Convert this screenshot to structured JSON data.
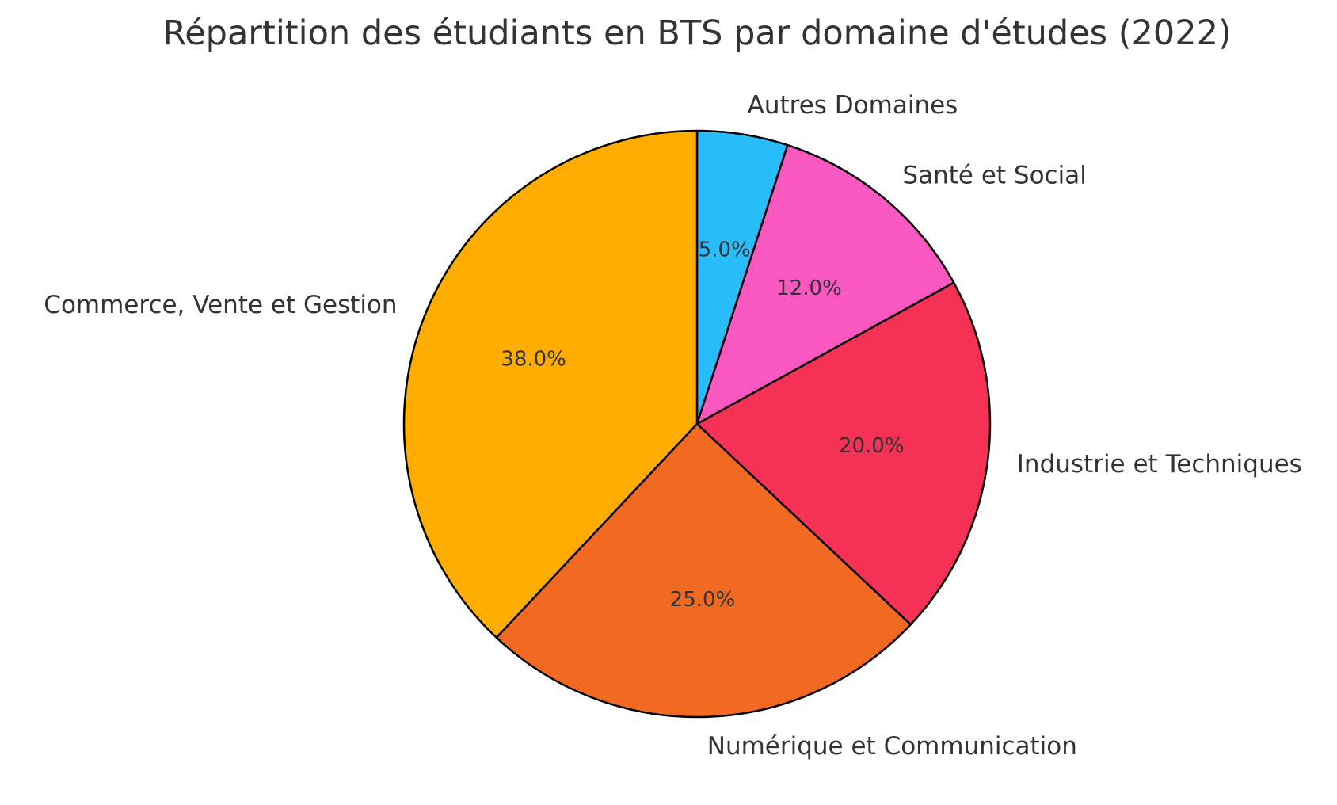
{
  "chart_data": {
    "type": "pie",
    "title": "Répartition des étudiants en BTS par domaine d'études (2022)",
    "categories": [
      "Autres Domaines",
      "Santé et Social",
      "Industrie et Techniques",
      "Numérique et Communication",
      "Commerce, Vente et Gestion"
    ],
    "values": [
      5,
      12,
      20,
      25,
      38
    ],
    "value_labels": [
      "5.0%",
      "12.0%",
      "20.0%",
      "25.0%",
      "38.0%"
    ],
    "colors": [
      "#29bdfb",
      "#f958c0",
      "#f53155",
      "#f26a22",
      "#feac00"
    ],
    "start": "top",
    "direction": "clockwise",
    "edge_color": "#000000",
    "legend": "none"
  }
}
